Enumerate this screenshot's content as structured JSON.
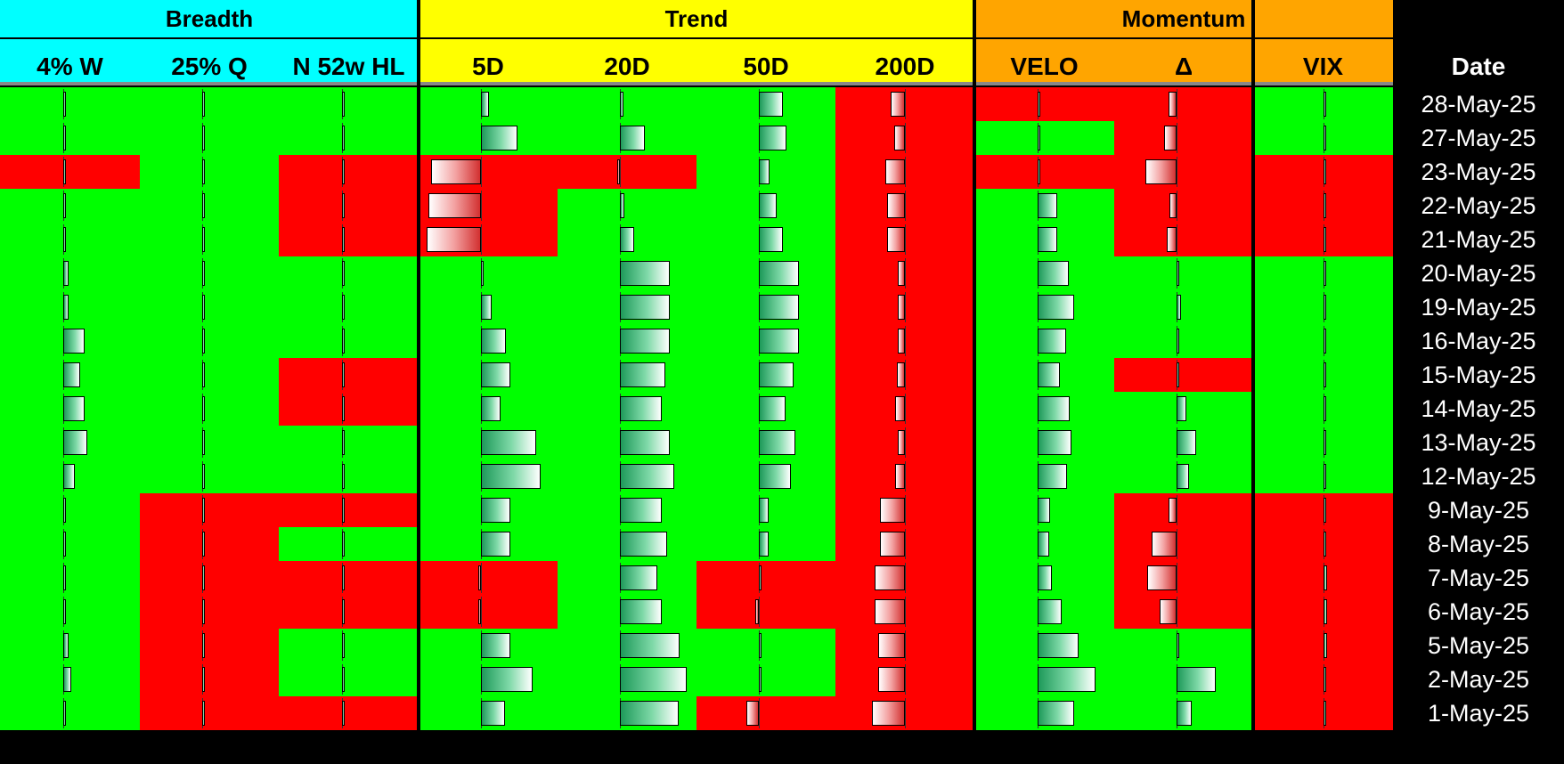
{
  "groups": [
    {
      "label": "Breadth",
      "color": "#00ffff"
    },
    {
      "label": "Trend",
      "color": "#ffff00"
    },
    {
      "label": "Momentum",
      "color": "#ffa500"
    }
  ],
  "chart_data": {
    "type": "table",
    "columns": [
      "4% W",
      "25% Q",
      "N 52w HL",
      "5D",
      "20D",
      "50D",
      "200D",
      "VELO",
      "Δ",
      "VIX"
    ],
    "date_header": "Date",
    "colors": {
      "positive": "#00ff00",
      "negative": "#ff0000"
    },
    "rows": [
      {
        "date": "28-May-25",
        "signals": [
          "pos",
          "pos",
          "pos",
          "pos",
          "pos",
          "pos",
          "neg",
          "neg",
          "neg",
          "pos"
        ],
        "bars": [
          0.02,
          0.02,
          0.02,
          0.12,
          0.05,
          0.34,
          -0.2,
          0,
          -0.12,
          0.01
        ]
      },
      {
        "date": "27-May-25",
        "signals": [
          "pos",
          "pos",
          "pos",
          "pos",
          "pos",
          "pos",
          "neg",
          "pos",
          "neg",
          "pos"
        ],
        "bars": [
          0.02,
          0.02,
          0.02,
          0.52,
          0.36,
          0.4,
          -0.15,
          0.02,
          -0.18,
          0.01
        ]
      },
      {
        "date": "23-May-25",
        "signals": [
          "neg",
          "pos",
          "neg",
          "neg",
          "neg",
          "pos",
          "neg",
          "neg",
          "neg",
          "neg"
        ],
        "bars": [
          0.01,
          0.02,
          0.02,
          -0.72,
          -0.02,
          0.16,
          -0.28,
          0,
          -0.45,
          0.02
        ]
      },
      {
        "date": "22-May-25",
        "signals": [
          "pos",
          "pos",
          "neg",
          "neg",
          "pos",
          "pos",
          "neg",
          "pos",
          "neg",
          "neg"
        ],
        "bars": [
          0.01,
          0.02,
          0.02,
          -0.76,
          0.06,
          0.26,
          -0.26,
          0.28,
          -0.1,
          0.01
        ]
      },
      {
        "date": "21-May-25",
        "signals": [
          "pos",
          "pos",
          "neg",
          "neg",
          "pos",
          "pos",
          "neg",
          "pos",
          "neg",
          "neg"
        ],
        "bars": [
          0.01,
          0.02,
          0.02,
          -0.78,
          0.2,
          0.34,
          -0.26,
          0.28,
          -0.14,
          0.01
        ]
      },
      {
        "date": "20-May-25",
        "signals": [
          "pos",
          "pos",
          "pos",
          "pos",
          "pos",
          "pos",
          "neg",
          "pos",
          "pos",
          "pos"
        ],
        "bars": [
          0.08,
          0.02,
          0.02,
          0.03,
          0.72,
          0.58,
          -0.1,
          0.44,
          0.02,
          0.02
        ]
      },
      {
        "date": "19-May-25",
        "signals": [
          "pos",
          "pos",
          "pos",
          "pos",
          "pos",
          "pos",
          "neg",
          "pos",
          "pos",
          "pos"
        ],
        "bars": [
          0.08,
          0.02,
          0.02,
          0.16,
          0.72,
          0.58,
          -0.1,
          0.52,
          0.06,
          0.02
        ]
      },
      {
        "date": "16-May-25",
        "signals": [
          "pos",
          "pos",
          "pos",
          "pos",
          "pos",
          "pos",
          "neg",
          "pos",
          "pos",
          "pos"
        ],
        "bars": [
          0.3,
          0.02,
          0.02,
          0.36,
          0.72,
          0.58,
          -0.1,
          0.4,
          0.01,
          0.02
        ]
      },
      {
        "date": "15-May-25",
        "signals": [
          "pos",
          "pos",
          "neg",
          "pos",
          "pos",
          "pos",
          "neg",
          "pos",
          "neg",
          "pos"
        ],
        "bars": [
          0.24,
          0.02,
          0.02,
          0.42,
          0.66,
          0.5,
          -0.12,
          0.32,
          0.01,
          0.02
        ]
      },
      {
        "date": "14-May-25",
        "signals": [
          "pos",
          "pos",
          "neg",
          "pos",
          "pos",
          "pos",
          "neg",
          "pos",
          "pos",
          "pos"
        ],
        "bars": [
          0.3,
          0.02,
          0.02,
          0.28,
          0.6,
          0.38,
          -0.14,
          0.46,
          0.14,
          0.01
        ]
      },
      {
        "date": "13-May-25",
        "signals": [
          "pos",
          "pos",
          "pos",
          "pos",
          "pos",
          "pos",
          "neg",
          "pos",
          "pos",
          "pos"
        ],
        "bars": [
          0.34,
          0.02,
          0.02,
          0.8,
          0.72,
          0.52,
          -0.1,
          0.48,
          0.28,
          0.01
        ]
      },
      {
        "date": "12-May-25",
        "signals": [
          "pos",
          "pos",
          "pos",
          "pos",
          "pos",
          "pos",
          "neg",
          "pos",
          "pos",
          "pos"
        ],
        "bars": [
          0.16,
          0.02,
          0.04,
          0.86,
          0.78,
          0.46,
          -0.14,
          0.42,
          0.18,
          0.01
        ]
      },
      {
        "date": "9-May-25",
        "signals": [
          "pos",
          "neg",
          "neg",
          "pos",
          "pos",
          "pos",
          "neg",
          "pos",
          "neg",
          "neg"
        ],
        "bars": [
          0.01,
          0.02,
          0.02,
          0.42,
          0.6,
          0.14,
          -0.36,
          0.18,
          -0.12,
          0.02
        ]
      },
      {
        "date": "8-May-25",
        "signals": [
          "pos",
          "neg",
          "pos",
          "pos",
          "pos",
          "pos",
          "neg",
          "pos",
          "neg",
          "neg"
        ],
        "bars": [
          0.04,
          0.02,
          0.02,
          0.42,
          0.68,
          0.14,
          -0.36,
          0.16,
          -0.36,
          0.02
        ]
      },
      {
        "date": "7-May-25",
        "signals": [
          "pos",
          "neg",
          "neg",
          "neg",
          "pos",
          "neg",
          "neg",
          "pos",
          "neg",
          "neg"
        ],
        "bars": [
          0.01,
          0.02,
          0.02,
          -0.02,
          0.54,
          0.01,
          -0.44,
          0.2,
          -0.42,
          0.05
        ]
      },
      {
        "date": "6-May-25",
        "signals": [
          "pos",
          "neg",
          "neg",
          "neg",
          "pos",
          "neg",
          "neg",
          "pos",
          "neg",
          "neg"
        ],
        "bars": [
          0.01,
          0.02,
          0.02,
          -0.02,
          0.6,
          -0.05,
          -0.44,
          0.34,
          -0.24,
          0.05
        ]
      },
      {
        "date": "5-May-25",
        "signals": [
          "pos",
          "neg",
          "pos",
          "pos",
          "pos",
          "pos",
          "neg",
          "pos",
          "pos",
          "neg"
        ],
        "bars": [
          0.08,
          0.02,
          0.02,
          0.42,
          0.86,
          0.02,
          -0.38,
          0.58,
          0.04,
          0.05
        ]
      },
      {
        "date": "2-May-25",
        "signals": [
          "pos",
          "neg",
          "pos",
          "pos",
          "pos",
          "pos",
          "neg",
          "pos",
          "pos",
          "neg"
        ],
        "bars": [
          0.12,
          0.02,
          0.04,
          0.74,
          0.96,
          0.04,
          -0.38,
          0.82,
          0.56,
          0.03
        ]
      },
      {
        "date": "1-May-25",
        "signals": [
          "pos",
          "neg",
          "neg",
          "pos",
          "pos",
          "neg",
          "neg",
          "pos",
          "pos",
          "neg"
        ],
        "bars": [
          0.04,
          0.02,
          0.02,
          0.34,
          0.84,
          -0.18,
          -0.48,
          0.52,
          0.22,
          0.04
        ]
      }
    ]
  }
}
